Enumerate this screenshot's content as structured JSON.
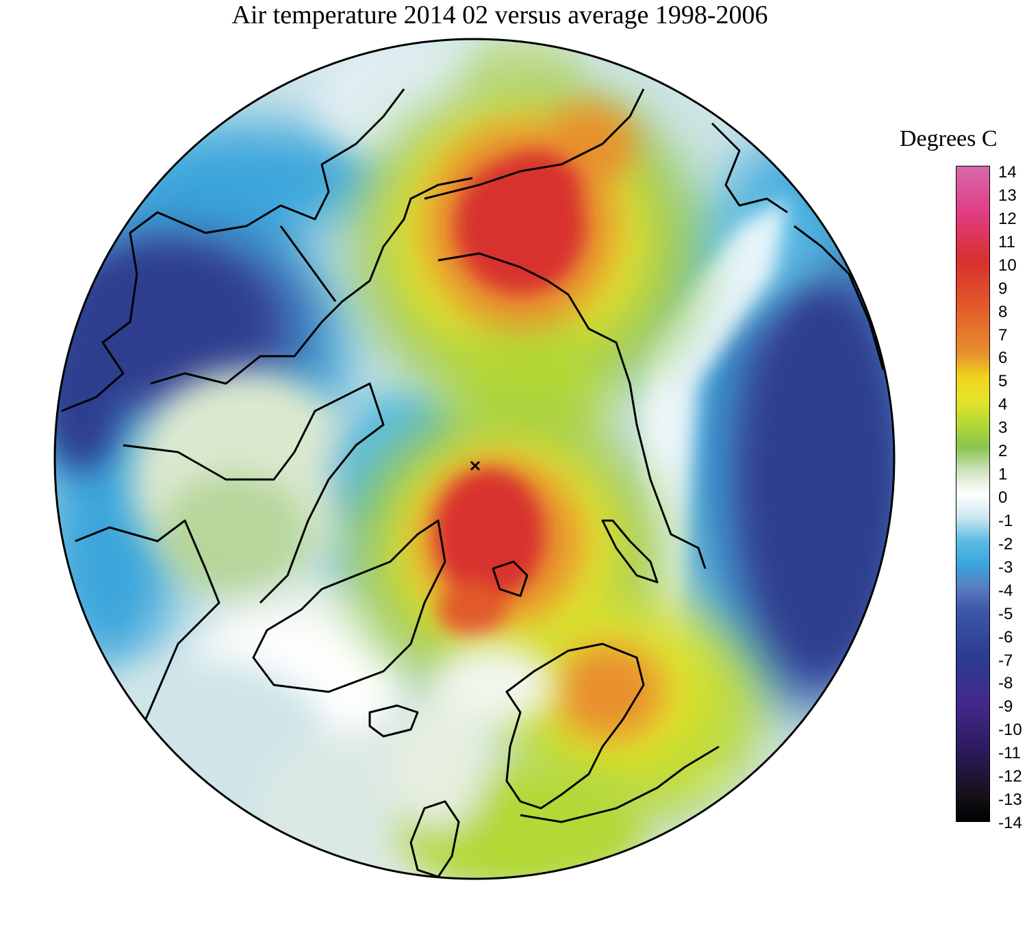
{
  "title": "Air temperature 2014 02 versus average 1998-2006",
  "legend": {
    "label": "Degrees C",
    "ticks": [
      "14",
      "13",
      "12",
      "11",
      "10",
      "9",
      "8",
      "7",
      "6",
      "5",
      "4",
      "3",
      "2",
      "1",
      "0",
      "-1",
      "-2",
      "-3",
      "-4",
      "-5",
      "-6",
      "-7",
      "-8",
      "-9",
      "-10",
      "-11",
      "-12",
      "-13",
      "-14"
    ],
    "range": [
      -14,
      14
    ],
    "colors": {
      "14": "#d46aa8",
      "12": "#e03c84",
      "10": "#d8302e",
      "8": "#e25a2a",
      "6": "#e8902e",
      "5": "#f0d21e",
      "4": "#e6e42a",
      "3": "#b4d836",
      "2": "#88c44e",
      "1": "#cfe2bc",
      "0": "#ffffff",
      "-1": "#cde8f2",
      "-2": "#5cbce4",
      "-3": "#3aa6dc",
      "-4": "#5a7cc0",
      "-5": "#3c56a6",
      "-7": "#2c3c90",
      "-9": "#43288a",
      "-11": "#2c1a5c",
      "-13": "#141016",
      "-14": "#000000"
    }
  },
  "map": {
    "projection": "north polar stereographic",
    "warm_anomaly_colors": [
      "#d8302e",
      "#e8902e",
      "#f0d21e",
      "#88c44e"
    ],
    "cold_anomaly_colors": [
      "#2e3c8e",
      "#3c56a6",
      "#3aa6dc",
      "#cde8f2"
    ]
  }
}
